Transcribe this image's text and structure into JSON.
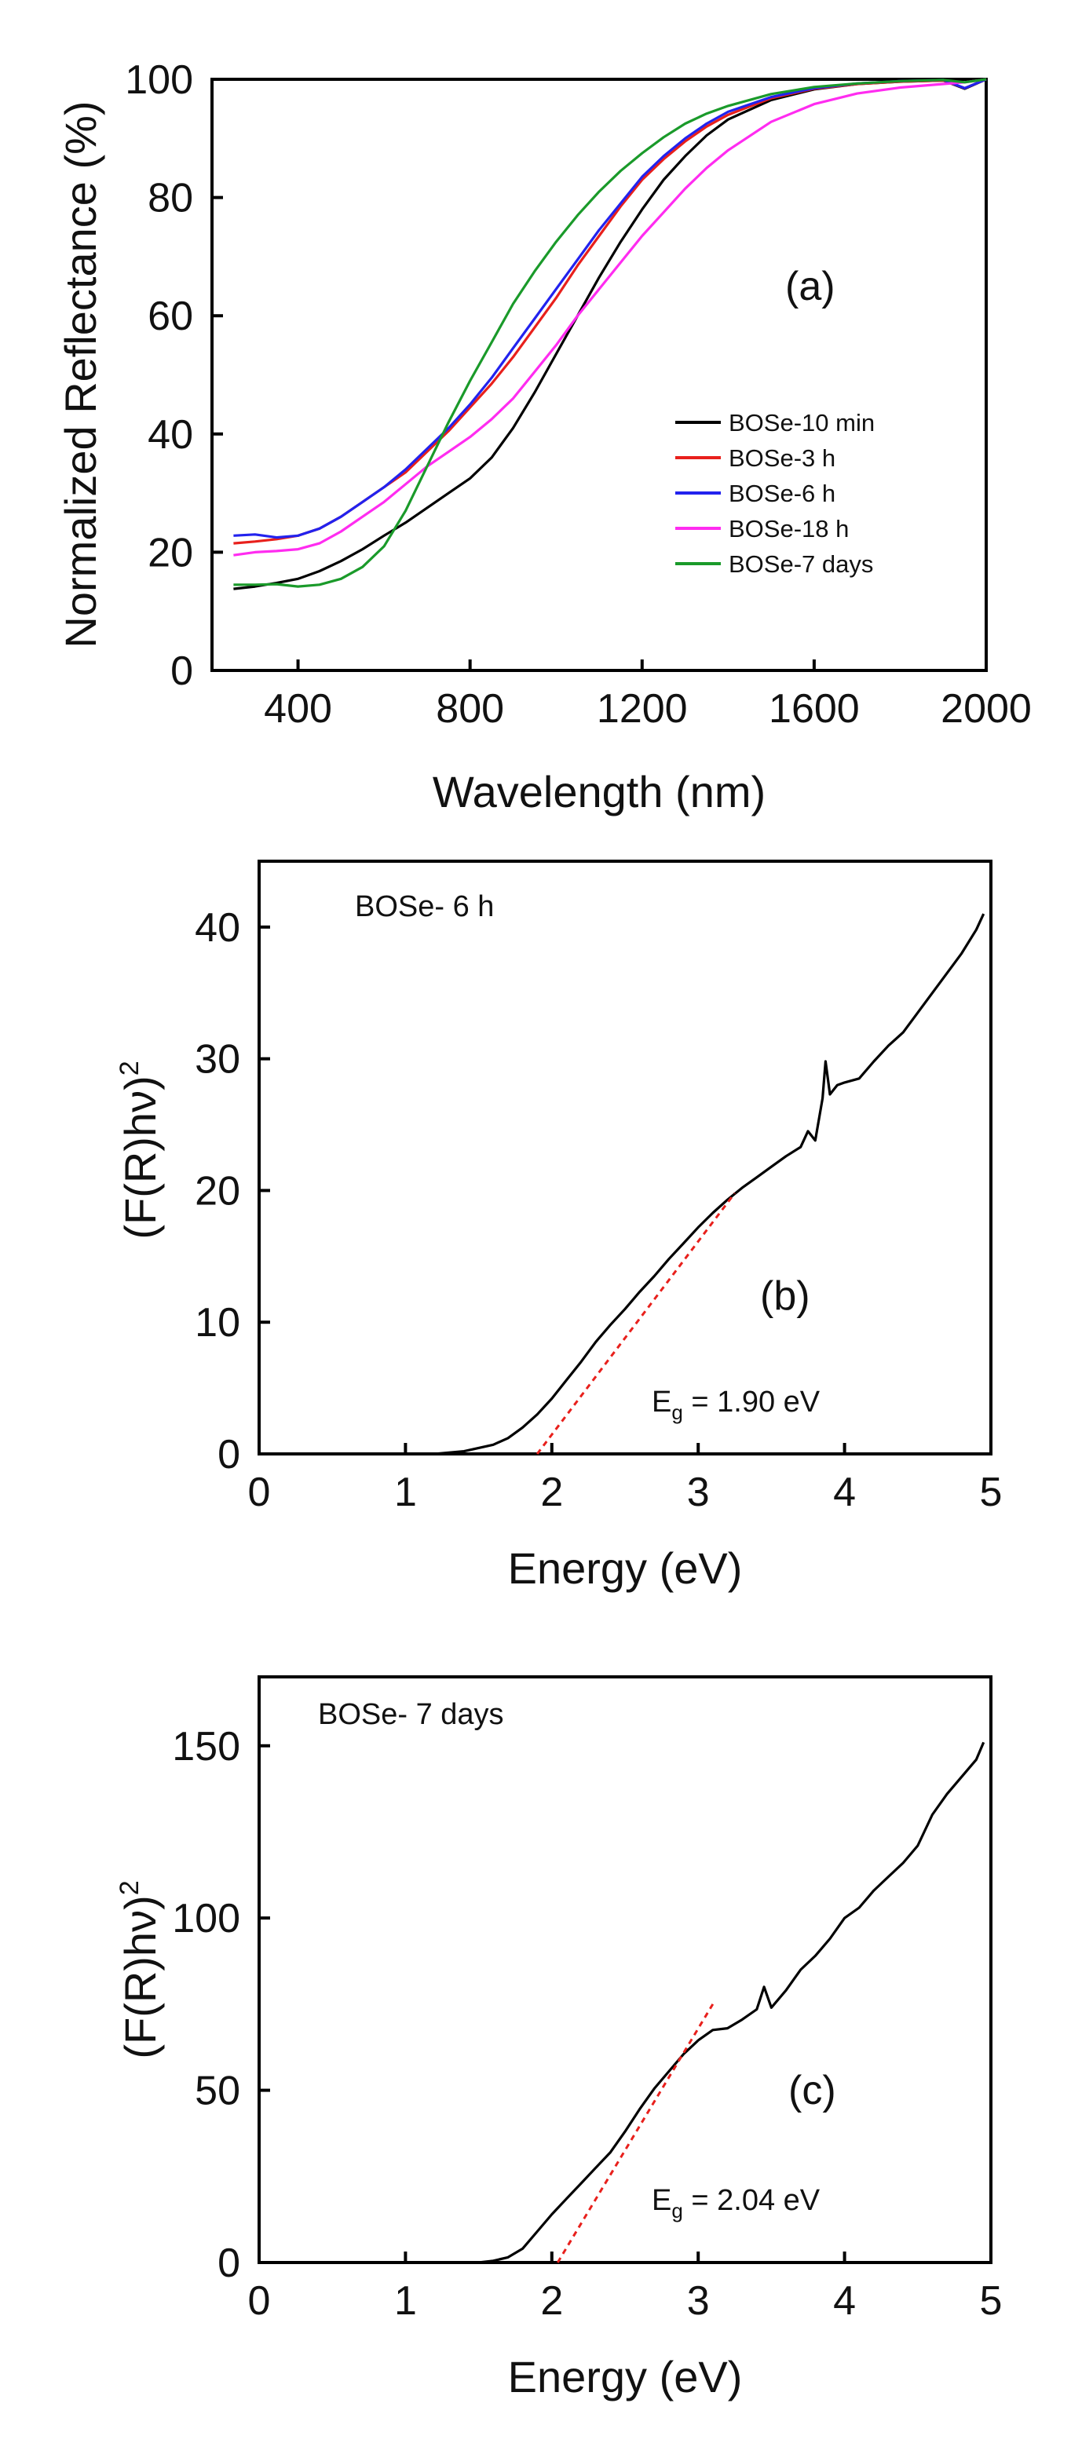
{
  "chart_data": [
    {
      "panel": "(a)",
      "type": "line",
      "title": "",
      "xlabel": "Wavelength (nm)",
      "ylabel": "Normalized Reflectance (%)",
      "xlim": [
        200,
        2000
      ],
      "ylim": [
        0,
        100
      ],
      "xticks": [
        400,
        800,
        1200,
        1600,
        2000
      ],
      "yticks": [
        0,
        20,
        40,
        60,
        80,
        100
      ],
      "grid": false,
      "legend_position": "lower-right",
      "series": [
        {
          "name": "BOSe-10 min",
          "color": "#000000",
          "x": [
            250,
            300,
            350,
            400,
            450,
            500,
            550,
            600,
            650,
            700,
            750,
            800,
            850,
            900,
            950,
            1000,
            1050,
            1100,
            1150,
            1200,
            1250,
            1300,
            1350,
            1400,
            1500,
            1600,
            1700,
            1800,
            1900,
            1950,
            2000
          ],
          "y": [
            13.8,
            14.2,
            14.8,
            15.5,
            16.8,
            18.5,
            20.5,
            22.8,
            25.0,
            27.5,
            30.0,
            32.5,
            36.0,
            41.0,
            47.0,
            53.5,
            60.0,
            66.5,
            72.5,
            78.0,
            83.0,
            87.0,
            90.5,
            93.2,
            96.5,
            98.3,
            99.2,
            99.6,
            99.8,
            98.4,
            100
          ]
        },
        {
          "name": "BOSe-3 h",
          "color": "#e8201c",
          "x": [
            250,
            300,
            350,
            400,
            450,
            500,
            550,
            600,
            650,
            700,
            750,
            800,
            850,
            900,
            950,
            1000,
            1050,
            1100,
            1150,
            1200,
            1250,
            1300,
            1350,
            1400,
            1500,
            1600,
            1700,
            1800,
            1900,
            1950,
            2000
          ],
          "y": [
            21.5,
            21.8,
            22.2,
            22.8,
            24.0,
            26.0,
            28.5,
            31.0,
            33.5,
            37.0,
            40.5,
            44.5,
            48.5,
            53.0,
            58.0,
            63.0,
            68.5,
            73.5,
            78.5,
            83.0,
            86.5,
            89.5,
            92.0,
            94.0,
            96.8,
            98.4,
            99.2,
            99.6,
            99.8,
            98.5,
            100
          ]
        },
        {
          "name": "BOSe-6 h",
          "color": "#2222ee",
          "x": [
            250,
            300,
            350,
            400,
            450,
            500,
            550,
            600,
            650,
            700,
            750,
            800,
            850,
            900,
            950,
            1000,
            1050,
            1100,
            1150,
            1200,
            1250,
            1300,
            1350,
            1400,
            1500,
            1600,
            1700,
            1800,
            1900,
            1950,
            2000
          ],
          "y": [
            22.8,
            23.0,
            22.5,
            22.8,
            24.0,
            26.0,
            28.5,
            31.0,
            34.0,
            37.5,
            41.0,
            45.0,
            49.5,
            54.5,
            59.5,
            64.5,
            69.5,
            74.5,
            79.0,
            83.5,
            87.0,
            90.0,
            92.5,
            94.5,
            97.0,
            98.5,
            99.3,
            99.7,
            99.9,
            98.5,
            100
          ]
        },
        {
          "name": "BOSe-18 h",
          "color": "#ff2cf0",
          "x": [
            250,
            300,
            350,
            400,
            450,
            500,
            550,
            600,
            650,
            700,
            750,
            800,
            850,
            900,
            950,
            1000,
            1050,
            1100,
            1150,
            1200,
            1250,
            1300,
            1350,
            1400,
            1500,
            1600,
            1700,
            1800,
            1900,
            1950,
            2000
          ],
          "y": [
            19.5,
            20.0,
            20.2,
            20.5,
            21.5,
            23.5,
            26.0,
            28.5,
            31.5,
            34.5,
            37.0,
            39.5,
            42.5,
            46.0,
            50.5,
            55.0,
            60.0,
            64.5,
            69.0,
            73.5,
            77.5,
            81.5,
            85.0,
            88.0,
            92.8,
            95.8,
            97.6,
            98.6,
            99.2,
            99.5,
            100
          ]
        },
        {
          "name": "BOSe-7 days",
          "color": "#1a9a2a",
          "x": [
            250,
            300,
            350,
            400,
            450,
            500,
            550,
            600,
            650,
            700,
            750,
            800,
            850,
            900,
            950,
            1000,
            1050,
            1100,
            1150,
            1200,
            1250,
            1300,
            1350,
            1400,
            1500,
            1600,
            1700,
            1800,
            1900,
            1950,
            2000
          ],
          "y": [
            14.5,
            14.5,
            14.6,
            14.2,
            14.5,
            15.5,
            17.5,
            21.0,
            27.0,
            34.5,
            42.0,
            49.0,
            55.5,
            62.0,
            67.5,
            72.5,
            77.0,
            81.0,
            84.5,
            87.5,
            90.2,
            92.5,
            94.2,
            95.5,
            97.5,
            98.7,
            99.3,
            99.7,
            99.9,
            99.5,
            100
          ]
        }
      ],
      "annotations": [
        "(a)"
      ]
    },
    {
      "panel": "(b)",
      "type": "line",
      "title": "",
      "sample_label": "BOSe- 6 h",
      "xlabel": "Energy (eV)",
      "ylabel_main": "(F(R)hν)",
      "ylabel_superscript": "2",
      "xlim": [
        0,
        5
      ],
      "ylim": [
        0,
        45
      ],
      "xticks": [
        0,
        1,
        2,
        3,
        4,
        5
      ],
      "yticks": [
        0,
        10,
        20,
        30,
        40
      ],
      "grid": false,
      "series": [
        {
          "name": "BOSe- 6 h",
          "color": "#000000",
          "x": [
            1.2,
            1.4,
            1.6,
            1.7,
            1.8,
            1.9,
            2.0,
            2.1,
            2.2,
            2.3,
            2.4,
            2.5,
            2.6,
            2.7,
            2.8,
            2.9,
            3.0,
            3.1,
            3.2,
            3.3,
            3.4,
            3.5,
            3.6,
            3.7,
            3.75,
            3.8,
            3.85,
            3.87,
            3.9,
            3.95,
            4.0,
            4.1,
            4.2,
            4.3,
            4.4,
            4.5,
            4.6,
            4.7,
            4.8,
            4.9,
            4.95
          ],
          "y": [
            0.0,
            0.2,
            0.7,
            1.2,
            2.0,
            3.0,
            4.2,
            5.6,
            7.0,
            8.5,
            9.8,
            11.0,
            12.3,
            13.5,
            14.8,
            16.0,
            17.2,
            18.3,
            19.3,
            20.2,
            21.0,
            21.8,
            22.6,
            23.3,
            24.5,
            23.8,
            27.0,
            29.8,
            27.3,
            28.0,
            28.2,
            28.5,
            29.8,
            31.0,
            32.0,
            33.5,
            35.0,
            36.5,
            38.0,
            39.8,
            41.0
          ]
        }
      ],
      "fit_line": {
        "color": "#e8201c",
        "x": [
          1.9,
          3.25
        ],
        "y": [
          0,
          19.8
        ]
      },
      "eg_label": {
        "prefix": "E",
        "subscript": "g",
        "value_text": " = 1.90 eV"
      },
      "annotations": [
        "(b)"
      ]
    },
    {
      "panel": "(c)",
      "type": "line",
      "title": "",
      "sample_label": "BOSe- 7 days",
      "xlabel": "Energy (eV)",
      "ylabel_main": "(F(R)hν)",
      "ylabel_superscript": "2",
      "xlim": [
        0,
        5
      ],
      "ylim": [
        0,
        170
      ],
      "xticks": [
        0,
        1,
        2,
        3,
        4,
        5
      ],
      "yticks": [
        0,
        50,
        100,
        150
      ],
      "grid": false,
      "series": [
        {
          "name": "BOSe- 7 days",
          "color": "#000000",
          "x": [
            1.5,
            1.6,
            1.7,
            1.8,
            1.9,
            2.0,
            2.1,
            2.2,
            2.3,
            2.4,
            2.5,
            2.6,
            2.7,
            2.8,
            2.9,
            3.0,
            3.1,
            3.2,
            3.3,
            3.4,
            3.45,
            3.5,
            3.6,
            3.7,
            3.8,
            3.9,
            4.0,
            4.1,
            4.2,
            4.3,
            4.4,
            4.5,
            4.6,
            4.7,
            4.8,
            4.9,
            4.95
          ],
          "y": [
            0.0,
            0.5,
            1.5,
            4.0,
            9.0,
            14.0,
            18.5,
            23.0,
            27.5,
            32.0,
            38.0,
            44.5,
            50.5,
            55.5,
            60.5,
            64.5,
            67.5,
            68.0,
            70.5,
            73.5,
            80.0,
            74.0,
            79.0,
            85.0,
            89.0,
            94.0,
            100.0,
            103.0,
            108.0,
            112.0,
            116.0,
            121.0,
            130.0,
            136.0,
            141.0,
            146.0,
            151.0
          ]
        }
      ],
      "fit_line": {
        "color": "#e8201c",
        "x": [
          2.04,
          3.1
        ],
        "y": [
          0,
          75.0
        ]
      },
      "eg_label": {
        "prefix": "E",
        "subscript": "g",
        "value_text": " = 2.04 eV"
      },
      "annotations": [
        "(c)"
      ]
    }
  ]
}
